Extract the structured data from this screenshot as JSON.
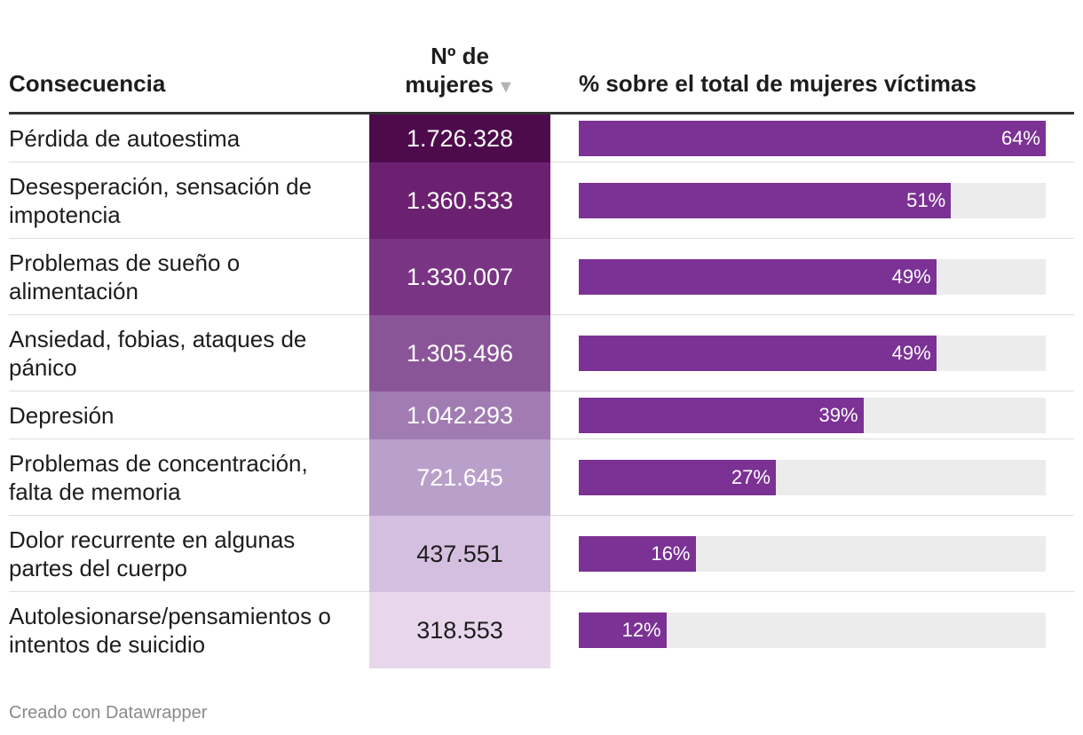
{
  "chart_data": {
    "type": "table",
    "columns": {
      "consequence": "Consecuencia",
      "count_line1": "Nº de",
      "count_line2": "mujeres",
      "percent": "% sobre el total de mujeres víctimas"
    },
    "sort_indicator": "▼",
    "rows": [
      {
        "label": "Pérdida de autoestima",
        "count": "1.726.328",
        "count_value": 1726328,
        "percent": 64,
        "percent_label": "64%",
        "cell_color": "#4e0b4c",
        "text_color": "#ffffff"
      },
      {
        "label": "Desesperación, sensación de impotencia",
        "count": "1.360.533",
        "count_value": 1360533,
        "percent": 51,
        "percent_label": "51%",
        "cell_color": "#6b2170",
        "text_color": "#ffffff"
      },
      {
        "label": "Problemas de sueño o alimentación",
        "count": "1.330.007",
        "count_value": 1330007,
        "percent": 49,
        "percent_label": "49%",
        "cell_color": "#7a3484",
        "text_color": "#ffffff"
      },
      {
        "label": "Ansiedad, fobias, ataques de pánico",
        "count": "1.305.496",
        "count_value": 1305496,
        "percent": 49,
        "percent_label": "49%",
        "cell_color": "#8a5598",
        "text_color": "#ffffff"
      },
      {
        "label": "Depresión",
        "count": "1.042.293",
        "count_value": 1042293,
        "percent": 39,
        "percent_label": "39%",
        "cell_color": "#a07cb3",
        "text_color": "#ffffff"
      },
      {
        "label": "Problemas de concentración, falta de memoria",
        "count": "721.645",
        "count_value": 721645,
        "percent": 27,
        "percent_label": "27%",
        "cell_color": "#b9a0ca",
        "text_color": "#ffffff"
      },
      {
        "label": "Dolor recurrente en algunas partes del cuerpo",
        "count": "437.551",
        "count_value": 437551,
        "percent": 16,
        "percent_label": "16%",
        "cell_color": "#d5bfe0",
        "text_color": "#1d1d1d"
      },
      {
        "label": "Autolesionarse/pensamientos o intentos de suicidio",
        "count": "318.553",
        "count_value": 318553,
        "percent": 12,
        "percent_label": "12%",
        "cell_color": "#e8d7ec",
        "text_color": "#1d1d1d"
      }
    ],
    "bar_max_percent": 64,
    "bar_color": "#7b3294",
    "track_color": "#ececec"
  },
  "footer": {
    "credit": "Creado con Datawrapper"
  }
}
